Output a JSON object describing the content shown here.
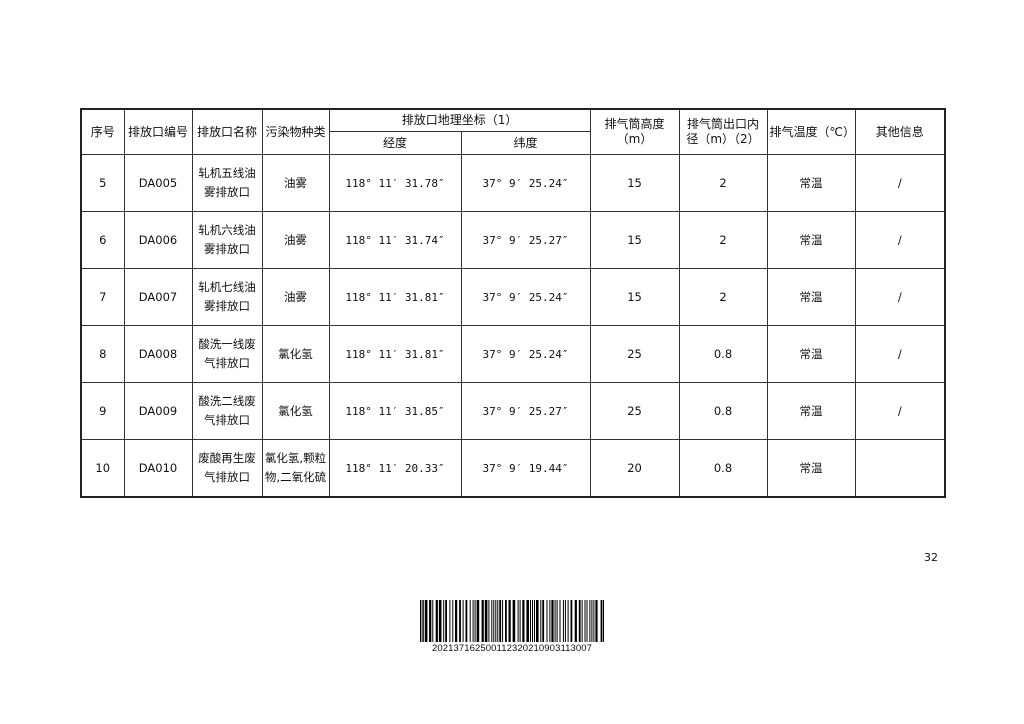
{
  "table": {
    "headers": {
      "seq": "序号",
      "outlet_code": "排放口编号",
      "outlet_name": "排放口名称",
      "pollutant": "污染物种类",
      "coords": "排放口地理坐标（1）",
      "longitude": "经度",
      "latitude": "纬度",
      "stack_height": "排气筒高度（m）",
      "stack_diameter": "排气筒出口内径（m）（2）",
      "exhaust_temp": "排气温度（℃）",
      "other": "其他信息"
    },
    "rows": [
      {
        "seq": "5",
        "code": "DA005",
        "name": "轧机五线油雾排放口",
        "pollutant": "油雾",
        "lon": "118° 11′ 31.78″",
        "lat": "37° 9′ 25.24″",
        "height": "15",
        "diameter": "2",
        "temp": "常温",
        "other": "/"
      },
      {
        "seq": "6",
        "code": "DA006",
        "name": "轧机六线油雾排放口",
        "pollutant": "油雾",
        "lon": "118° 11′ 31.74″",
        "lat": "37° 9′ 25.27″",
        "height": "15",
        "diameter": "2",
        "temp": "常温",
        "other": "/"
      },
      {
        "seq": "7",
        "code": "DA007",
        "name": "轧机七线油雾排放口",
        "pollutant": "油雾",
        "lon": "118° 11′ 31.81″",
        "lat": "37° 9′ 25.24″",
        "height": "15",
        "diameter": "2",
        "temp": "常温",
        "other": "/"
      },
      {
        "seq": "8",
        "code": "DA008",
        "name": "酸洗一线废气排放口",
        "pollutant": "氯化氢",
        "lon": "118° 11′ 31.81″",
        "lat": "37° 9′ 25.24″",
        "height": "25",
        "diameter": "0.8",
        "temp": "常温",
        "other": "/"
      },
      {
        "seq": "9",
        "code": "DA009",
        "name": "酸洗二线废气排放口",
        "pollutant": "氯化氢",
        "lon": "118° 11′ 31.85″",
        "lat": "37° 9′ 25.27″",
        "height": "25",
        "diameter": "0.8",
        "temp": "常温",
        "other": "/"
      },
      {
        "seq": "10",
        "code": "DA010",
        "name": "废酸再生废气排放口",
        "pollutant": "氯化氢,颗粒物,二氧化硫",
        "lon": "118° 11′ 20.33″",
        "lat": "37° 9′ 19.44″",
        "height": "20",
        "diameter": "0.8",
        "temp": "常温",
        "other": ""
      }
    ]
  },
  "page_number": "32",
  "barcode": {
    "number": "2021371625001123202109031130​07"
  }
}
